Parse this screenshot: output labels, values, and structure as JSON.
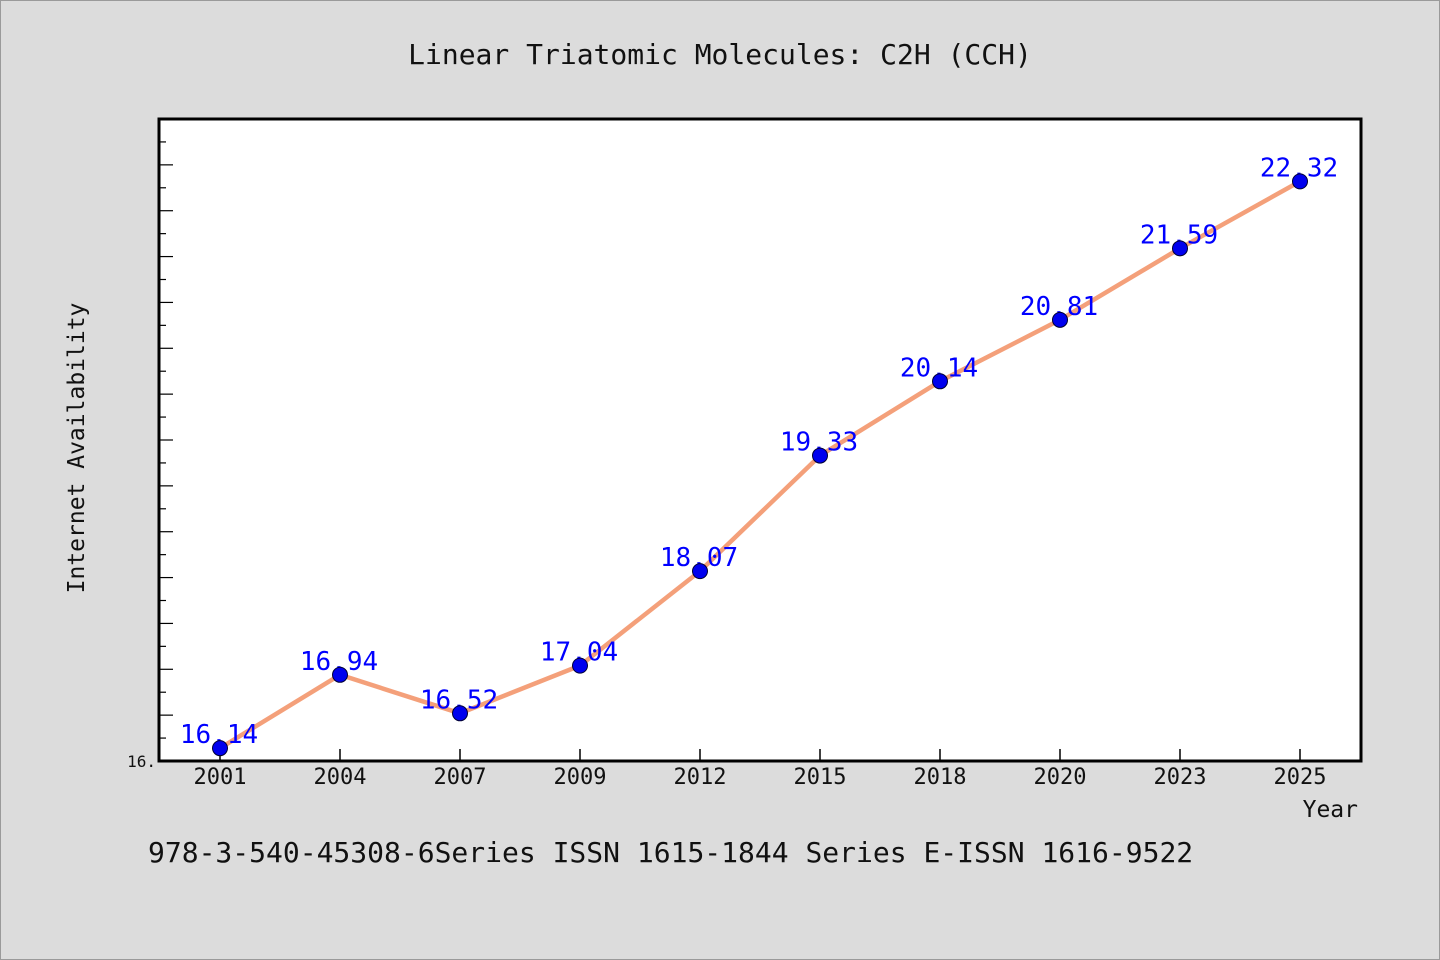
{
  "chart_data": {
    "type": "line",
    "title": "Linear Triatomic Molecules: C2H (CCH)",
    "xlabel": "Year",
    "ylabel": "Internet Availability",
    "x": [
      "2001",
      "2004",
      "2007",
      "2009",
      "2012",
      "2015",
      "2018",
      "2020",
      "2023",
      "2025"
    ],
    "series": [
      {
        "values": [
          16.14,
          16.94,
          16.52,
          17.04,
          18.07,
          19.33,
          20.14,
          20.81,
          21.59,
          22.32
        ],
        "labels": [
          "16.14",
          "16.94",
          "16.52",
          "17.04",
          "18.07",
          "19.33",
          "20.14",
          "20.81",
          "21.59",
          "22.32"
        ],
        "line_color": "#f4a07a",
        "marker_color": "#0000ee"
      }
    ],
    "ylim": [
      16.0,
      23.0
    ],
    "yticks_labeled": [
      {
        "value": 16.0,
        "label": "16."
      }
    ],
    "grid": false,
    "legend": "none"
  },
  "footer": "978-3-540-45308-6Series ISSN 1615-1844 Series E-ISSN 1616-9522",
  "colors": {
    "background": "#dcdcdc",
    "plot_background": "#ffffff",
    "line": "#f4a07a",
    "marker": "#0000ee",
    "data_label": "#0000ff"
  }
}
